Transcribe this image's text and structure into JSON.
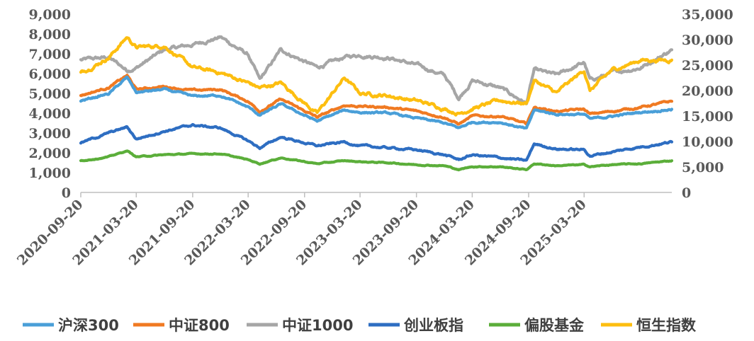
{
  "chart_data": {
    "type": "line",
    "title": "",
    "xlabel": "",
    "ylabel": "",
    "x_tick_labels": [
      "2020-09-20",
      "2021-03-20",
      "2021-09-20",
      "2022-03-20",
      "2022-09-20",
      "2023-03-20",
      "2023-09-20",
      "2024-03-20",
      "2024-09-20",
      "2025-03-20"
    ],
    "x_range": [
      "2020-09-20",
      "2025-12-31"
    ],
    "y_left": {
      "ylim": [
        0,
        9000
      ],
      "ticks": [
        "0",
        "1,000",
        "2,000",
        "3,000",
        "4,000",
        "5,000",
        "6,000",
        "7,000",
        "8,000",
        "9,000"
      ]
    },
    "y_right": {
      "ylim": [
        0,
        35000
      ],
      "ticks": [
        "0",
        "5,000",
        "10,000",
        "15,000",
        "20,000",
        "25,000",
        "30,000",
        "35,000"
      ]
    },
    "grid": false,
    "legend_position": "bottom",
    "series": [
      {
        "name": "沪深300",
        "axis": "left",
        "color": "#4A9FD8",
        "x": [
          "2020-09-20",
          "2020-12-20",
          "2021-02-18",
          "2021-03-20",
          "2021-06-20",
          "2021-09-20",
          "2021-12-20",
          "2022-03-20",
          "2022-04-27",
          "2022-07-05",
          "2022-10-31",
          "2023-01-28",
          "2023-03-20",
          "2023-06-20",
          "2023-09-20",
          "2023-12-20",
          "2024-02-05",
          "2024-03-20",
          "2024-06-20",
          "2024-09-13",
          "2024-10-08",
          "2024-12-20",
          "2025-03-20",
          "2025-04-08",
          "2025-06-20",
          "2025-09-20",
          "2025-12-31"
        ],
        "values": [
          4630,
          4980,
          5800,
          5050,
          5200,
          4850,
          4900,
          4300,
          3900,
          4450,
          3600,
          4150,
          4050,
          4000,
          3750,
          3500,
          3250,
          3550,
          3550,
          3200,
          4150,
          3950,
          3950,
          3700,
          3850,
          4050,
          4200
        ]
      },
      {
        "name": "中证800",
        "axis": "left",
        "color": "#F07A22",
        "x": [
          "2020-09-20",
          "2020-12-20",
          "2021-02-18",
          "2021-03-20",
          "2021-06-20",
          "2021-09-20",
          "2021-12-20",
          "2022-03-20",
          "2022-04-27",
          "2022-07-05",
          "2022-10-31",
          "2023-01-28",
          "2023-03-20",
          "2023-06-20",
          "2023-09-20",
          "2023-12-20",
          "2024-02-05",
          "2024-03-20",
          "2024-06-20",
          "2024-09-13",
          "2024-10-08",
          "2024-12-20",
          "2025-03-20",
          "2025-04-08",
          "2025-06-20",
          "2025-09-20",
          "2025-12-31"
        ],
        "values": [
          4900,
          5300,
          5900,
          5200,
          5350,
          5150,
          5200,
          4600,
          4100,
          4700,
          3800,
          4400,
          4350,
          4300,
          4100,
          3800,
          3450,
          3850,
          3850,
          3450,
          4300,
          4100,
          4200,
          3950,
          4100,
          4300,
          4600
        ]
      },
      {
        "name": "中证1000",
        "axis": "right",
        "color": "#A6A6A6",
        "x": [
          "2020-09-20",
          "2020-12-20",
          "2021-02-18",
          "2021-03-20",
          "2021-06-20",
          "2021-09-20",
          "2021-12-20",
          "2022-03-20",
          "2022-04-27",
          "2022-07-05",
          "2022-10-31",
          "2023-01-28",
          "2023-03-20",
          "2023-06-20",
          "2023-09-20",
          "2023-12-20",
          "2024-02-05",
          "2024-03-20",
          "2024-06-20",
          "2024-09-13",
          "2024-10-08",
          "2024-12-20",
          "2025-03-20",
          "2025-04-08",
          "2025-06-20",
          "2025-09-20",
          "2025-12-31"
        ],
        "values": [
          26000,
          26500,
          24000,
          24500,
          28000,
          29000,
          30500,
          27000,
          22000,
          28000,
          24500,
          26500,
          27000,
          26500,
          25000,
          23000,
          18500,
          22000,
          20500,
          17500,
          24000,
          23000,
          25500,
          22000,
          23500,
          24500,
          28000
        ]
      },
      {
        "name": "创业板指",
        "axis": "left",
        "color": "#2E6EC2",
        "x": [
          "2020-09-20",
          "2020-12-20",
          "2021-02-18",
          "2021-03-20",
          "2021-06-20",
          "2021-09-20",
          "2021-12-20",
          "2022-03-20",
          "2022-04-27",
          "2022-07-05",
          "2022-10-31",
          "2023-01-28",
          "2023-03-20",
          "2023-06-20",
          "2023-09-20",
          "2023-12-20",
          "2024-02-05",
          "2024-03-20",
          "2024-06-20",
          "2024-09-13",
          "2024-10-08",
          "2024-12-20",
          "2025-03-20",
          "2025-04-08",
          "2025-06-20",
          "2025-09-20",
          "2025-12-31"
        ],
        "values": [
          2500,
          3000,
          3300,
          2700,
          3100,
          3400,
          3250,
          2600,
          2250,
          2800,
          2350,
          2550,
          2350,
          2250,
          2150,
          1900,
          1650,
          1900,
          1750,
          1600,
          2450,
          2200,
          2150,
          1850,
          2050,
          2300,
          2550
        ]
      },
      {
        "name": "偏股基金",
        "axis": "left",
        "color": "#5BAE3A",
        "x": [
          "2020-09-20",
          "2020-12-20",
          "2021-02-18",
          "2021-03-20",
          "2021-06-20",
          "2021-09-20",
          "2021-12-20",
          "2022-03-20",
          "2022-04-27",
          "2022-07-05",
          "2022-10-31",
          "2023-01-28",
          "2023-03-20",
          "2023-06-20",
          "2023-09-20",
          "2023-12-20",
          "2024-02-05",
          "2024-03-20",
          "2024-06-20",
          "2024-09-13",
          "2024-10-08",
          "2024-12-20",
          "2025-03-20",
          "2025-04-08",
          "2025-06-20",
          "2025-09-20",
          "2025-12-31"
        ],
        "values": [
          1600,
          1800,
          2100,
          1800,
          1900,
          1950,
          1950,
          1650,
          1450,
          1750,
          1450,
          1600,
          1550,
          1500,
          1400,
          1350,
          1150,
          1300,
          1300,
          1150,
          1450,
          1350,
          1400,
          1300,
          1400,
          1450,
          1600
        ]
      },
      {
        "name": "恒生指数",
        "axis": "right",
        "color": "#FDBE10",
        "x": [
          "2020-09-20",
          "2020-12-20",
          "2021-02-18",
          "2021-03-20",
          "2021-06-20",
          "2021-09-20",
          "2021-12-20",
          "2022-03-20",
          "2022-04-27",
          "2022-07-05",
          "2022-10-31",
          "2023-01-28",
          "2023-03-20",
          "2023-06-20",
          "2023-09-20",
          "2023-12-20",
          "2024-02-05",
          "2024-03-20",
          "2024-06-20",
          "2024-09-13",
          "2024-10-08",
          "2024-12-20",
          "2025-03-20",
          "2025-04-08",
          "2025-06-20",
          "2025-09-20",
          "2025-12-31"
        ],
        "values": [
          23500,
          26500,
          30500,
          28500,
          28800,
          24500,
          23500,
          21500,
          20500,
          21500,
          15500,
          22500,
          19500,
          19000,
          18000,
          16500,
          15500,
          16500,
          18000,
          17500,
          22000,
          19500,
          24000,
          20000,
          24000,
          26000,
          26000
        ]
      }
    ]
  }
}
